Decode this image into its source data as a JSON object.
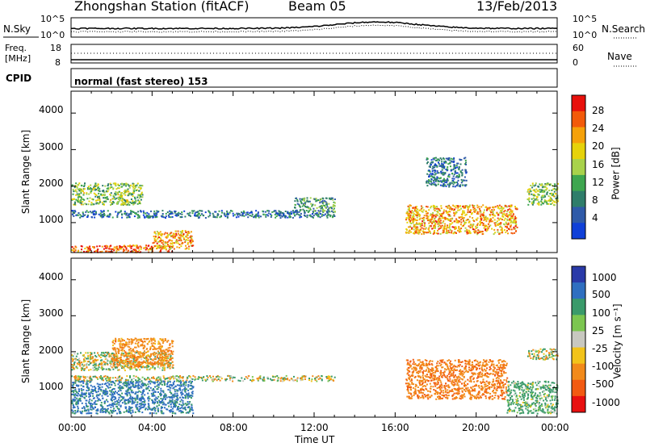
{
  "header": {
    "station": "Zhongshan Station (fitACF)",
    "beam": "Beam 05",
    "date": "13/Feb/2013"
  },
  "noise_panel": {
    "left_label": "N.Sky",
    "left_ticks": [
      "10^5",
      "10^0"
    ],
    "right_label": "N.Search",
    "right_ticks": [
      "10^5",
      "10^0"
    ]
  },
  "freq_panel": {
    "left_label_1": "Freq.",
    "left_label_2": "[MHz]",
    "left_ticks": [
      "18",
      "8"
    ],
    "right_label": "Nave",
    "right_ticks": [
      "60",
      "0"
    ]
  },
  "cpid": {
    "label": "CPID",
    "value": "normal (fast stereo) 153"
  },
  "power_colorbar": {
    "label": "Power [dB]",
    "ticks": [
      "28",
      "24",
      "20",
      "16",
      "12",
      "8",
      "4"
    ],
    "colors": [
      "#e8100c",
      "#f25a0a",
      "#f5a10a",
      "#e6d20a",
      "#a8d24b",
      "#3ea64f",
      "#2f7d6a",
      "#2f5aa8",
      "#1040d8"
    ]
  },
  "velocity_colorbar": {
    "label": "Velocity [m s⁻¹]",
    "ticks": [
      "1000",
      "500",
      "100",
      "25",
      "-25",
      "-100",
      "-500",
      "-1000"
    ],
    "colors": [
      "#2a3aa8",
      "#2f6fc0",
      "#3a9a6a",
      "#7cc650",
      "#c8c8c0",
      "#f2c31a",
      "#f28a1a",
      "#f25a12",
      "#e81010"
    ]
  },
  "axes": {
    "y_label": "Slant Range [km]",
    "y_ticks": [
      "4000",
      "3000",
      "2000",
      "1000"
    ],
    "x_label": "Time UT",
    "x_ticks": [
      "00:00",
      "04:00",
      "08:00",
      "12:00",
      "16:00",
      "20:00",
      "00:00"
    ]
  },
  "chart_data": [
    {
      "type": "heatmap",
      "title": "",
      "xlabel": "",
      "ylabel": "Slant Range [km]",
      "xlim": [
        0,
        24
      ],
      "ylim": [
        180,
        4600
      ],
      "colorbar_label": "Power [dB]",
      "colorbar_ticks": [
        28,
        24,
        20,
        16,
        12,
        8,
        4
      ],
      "scatter_regions": [
        {
          "t": [
            0.0,
            13.0
          ],
          "r": [
            1150,
            1350
          ],
          "power": 8
        },
        {
          "t": [
            0.0,
            3.5
          ],
          "r": [
            1500,
            2100
          ],
          "power": 16
        },
        {
          "t": [
            0.0,
            5.0
          ],
          "r": [
            200,
            400
          ],
          "power": 28
        },
        {
          "t": [
            4.0,
            6.0
          ],
          "r": [
            300,
            800
          ],
          "power": 24
        },
        {
          "t": [
            11.0,
            13.0
          ],
          "r": [
            1300,
            1700
          ],
          "power": 12
        },
        {
          "t": [
            16.5,
            22.0
          ],
          "r": [
            700,
            1500
          ],
          "power": 24
        },
        {
          "t": [
            17.5,
            19.5
          ],
          "r": [
            2000,
            2800
          ],
          "power": 8
        },
        {
          "t": [
            22.5,
            24.0
          ],
          "r": [
            1500,
            2100
          ],
          "power": 16
        }
      ]
    },
    {
      "type": "heatmap",
      "title": "",
      "xlabel": "Time UT",
      "ylabel": "Slant Range [km]",
      "xlim": [
        0,
        24
      ],
      "ylim": [
        180,
        4600
      ],
      "colorbar_label": "Velocity [m s⁻¹]",
      "colorbar_ticks": [
        1000,
        500,
        100,
        25,
        -25,
        -100,
        -500,
        -1000
      ],
      "scatter_regions": [
        {
          "t": [
            0.0,
            13.0
          ],
          "r": [
            1200,
            1350
          ],
          "velocity": 0
        },
        {
          "t": [
            0.0,
            5.0
          ],
          "r": [
            1500,
            2000
          ],
          "velocity": 0
        },
        {
          "t": [
            0.0,
            6.0
          ],
          "r": [
            300,
            1200
          ],
          "velocity": 600
        },
        {
          "t": [
            2.0,
            5.0
          ],
          "r": [
            1600,
            2400
          ],
          "velocity": -300
        },
        {
          "t": [
            16.5,
            21.5
          ],
          "r": [
            700,
            1800
          ],
          "velocity": -400
        },
        {
          "t": [
            21.5,
            24.0
          ],
          "r": [
            300,
            1200
          ],
          "velocity": 200
        },
        {
          "t": [
            22.5,
            24.0
          ],
          "r": [
            1800,
            2100
          ],
          "velocity": 0
        }
      ]
    }
  ]
}
